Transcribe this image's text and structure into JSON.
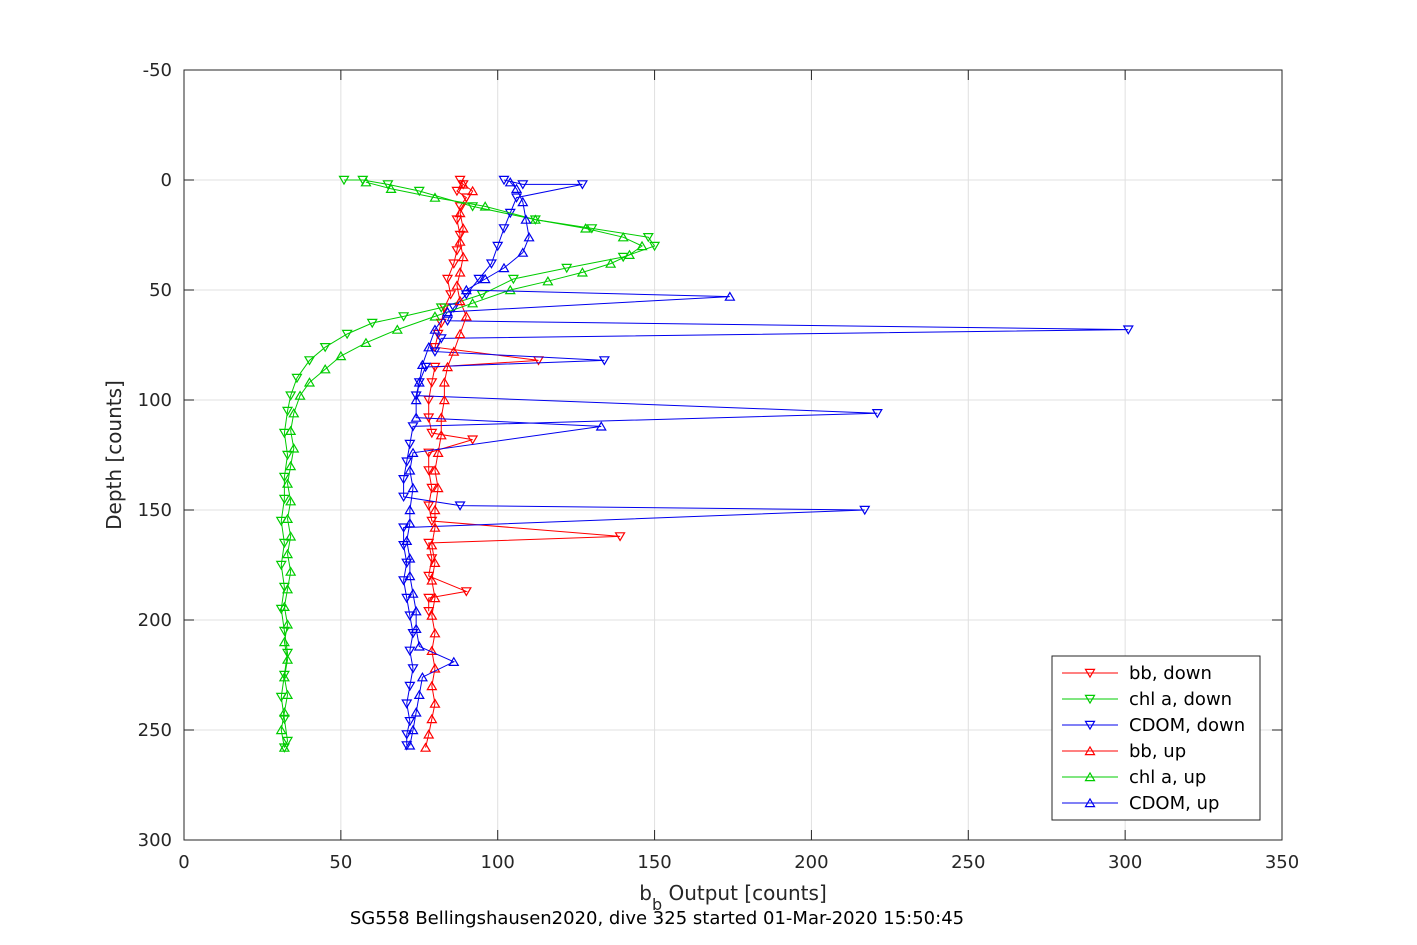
{
  "chart_data": {
    "type": "scatter",
    "xlabel_main": "b",
    "xlabel_sub": "b",
    "xlabel_rest": " Output [counts]",
    "ylabel": "Depth [counts]",
    "caption": "SG558 Bellingshausen2020, dive 325 started 01-Mar-2020 15:50:45",
    "xlim": [
      0,
      350
    ],
    "ylim": [
      -50,
      300
    ],
    "y_reversed": true,
    "grid": true,
    "legend_position": "bottom-right",
    "xticks": [
      "0",
      "50",
      "100",
      "150",
      "200",
      "250",
      "300",
      "350"
    ],
    "yticks": [
      "-50",
      "0",
      "50",
      "100",
      "150",
      "200",
      "250",
      "300"
    ],
    "colors": {
      "red": "#ff0000",
      "green": "#00cc00",
      "blue": "#0000ee",
      "grid": "#e0e0e0",
      "axis": "#262626"
    },
    "series": [
      {
        "name": "bb, down",
        "color": "#ff0000",
        "marker": "down",
        "points": [
          [
            88,
            0
          ],
          [
            89,
            2
          ],
          [
            87,
            5
          ],
          [
            90,
            8
          ],
          [
            88,
            12
          ],
          [
            87,
            18
          ],
          [
            88,
            25
          ],
          [
            87,
            32
          ],
          [
            86,
            38
          ],
          [
            84,
            45
          ],
          [
            85,
            52
          ],
          [
            83,
            58
          ],
          [
            82,
            65
          ],
          [
            81,
            70
          ],
          [
            80,
            76
          ],
          [
            113,
            82
          ],
          [
            80,
            85
          ],
          [
            79,
            92
          ],
          [
            78,
            100
          ],
          [
            78,
            108
          ],
          [
            79,
            115
          ],
          [
            92,
            118
          ],
          [
            78,
            124
          ],
          [
            78,
            132
          ],
          [
            79,
            140
          ],
          [
            78,
            148
          ],
          [
            79,
            155
          ],
          [
            139,
            162
          ],
          [
            78,
            165
          ],
          [
            79,
            172
          ],
          [
            78,
            180
          ],
          [
            90,
            187
          ],
          [
            78,
            190
          ],
          [
            78,
            196
          ]
        ]
      },
      {
        "name": "chl a, down",
        "color": "#00cc00",
        "marker": "down",
        "points": [
          [
            51,
            0
          ],
          [
            57,
            0
          ],
          [
            65,
            2
          ],
          [
            75,
            5
          ],
          [
            92,
            12
          ],
          [
            112,
            18
          ],
          [
            130,
            22
          ],
          [
            148,
            26
          ],
          [
            150,
            30
          ],
          [
            140,
            35
          ],
          [
            122,
            40
          ],
          [
            105,
            45
          ],
          [
            95,
            52
          ],
          [
            82,
            58
          ],
          [
            70,
            62
          ],
          [
            60,
            65
          ],
          [
            52,
            70
          ],
          [
            45,
            76
          ],
          [
            40,
            82
          ],
          [
            36,
            90
          ],
          [
            34,
            98
          ],
          [
            33,
            105
          ],
          [
            32,
            115
          ],
          [
            33,
            125
          ],
          [
            32,
            135
          ],
          [
            32,
            145
          ],
          [
            31,
            155
          ],
          [
            32,
            165
          ],
          [
            31,
            175
          ],
          [
            32,
            185
          ],
          [
            31,
            195
          ],
          [
            32,
            205
          ],
          [
            33,
            215
          ],
          [
            32,
            225
          ],
          [
            31,
            235
          ],
          [
            32,
            245
          ],
          [
            33,
            255
          ],
          [
            32,
            258
          ]
        ]
      },
      {
        "name": "CDOM, down",
        "color": "#0000ee",
        "marker": "down",
        "points": [
          [
            102,
            0
          ],
          [
            108,
            2
          ],
          [
            127,
            2
          ],
          [
            106,
            8
          ],
          [
            104,
            15
          ],
          [
            102,
            22
          ],
          [
            100,
            30
          ],
          [
            98,
            38
          ],
          [
            94,
            45
          ],
          [
            90,
            52
          ],
          [
            86,
            58
          ],
          [
            84,
            64
          ],
          [
            301,
            68
          ],
          [
            82,
            72
          ],
          [
            80,
            78
          ],
          [
            134,
            82
          ],
          [
            77,
            85
          ],
          [
            75,
            92
          ],
          [
            74,
            98
          ],
          [
            221,
            106
          ],
          [
            73,
            112
          ],
          [
            72,
            120
          ],
          [
            71,
            128
          ],
          [
            70,
            136
          ],
          [
            70,
            144
          ],
          [
            88,
            148
          ],
          [
            217,
            150
          ],
          [
            70,
            158
          ],
          [
            70,
            166
          ],
          [
            71,
            174
          ],
          [
            70,
            182
          ],
          [
            71,
            190
          ],
          [
            72,
            198
          ],
          [
            73,
            206
          ],
          [
            72,
            214
          ],
          [
            73,
            222
          ],
          [
            72,
            230
          ],
          [
            71,
            238
          ],
          [
            72,
            246
          ],
          [
            71,
            252
          ],
          [
            71,
            257
          ]
        ]
      },
      {
        "name": "bb, up",
        "color": "#ff0000",
        "marker": "up",
        "points": [
          [
            77,
            258
          ],
          [
            78,
            252
          ],
          [
            79,
            245
          ],
          [
            80,
            238
          ],
          [
            79,
            230
          ],
          [
            80,
            222
          ],
          [
            79,
            214
          ],
          [
            80,
            206
          ],
          [
            79,
            198
          ],
          [
            80,
            190
          ],
          [
            79,
            182
          ],
          [
            80,
            174
          ],
          [
            79,
            166
          ],
          [
            80,
            158
          ],
          [
            80,
            150
          ],
          [
            81,
            140
          ],
          [
            80,
            132
          ],
          [
            81,
            124
          ],
          [
            82,
            116
          ],
          [
            82,
            108
          ],
          [
            83,
            100
          ],
          [
            83,
            92
          ],
          [
            84,
            85
          ],
          [
            86,
            78
          ],
          [
            88,
            70
          ],
          [
            90,
            62
          ],
          [
            88,
            55
          ],
          [
            87,
            48
          ],
          [
            88,
            42
          ],
          [
            89,
            35
          ],
          [
            88,
            28
          ],
          [
            89,
            22
          ],
          [
            88,
            15
          ],
          [
            92,
            5
          ],
          [
            89,
            2
          ]
        ]
      },
      {
        "name": "chl a, up",
        "color": "#00cc00",
        "marker": "up",
        "points": [
          [
            32,
            258
          ],
          [
            31,
            250
          ],
          [
            32,
            242
          ],
          [
            33,
            234
          ],
          [
            32,
            226
          ],
          [
            33,
            218
          ],
          [
            32,
            210
          ],
          [
            33,
            202
          ],
          [
            32,
            194
          ],
          [
            33,
            186
          ],
          [
            34,
            178
          ],
          [
            33,
            170
          ],
          [
            34,
            162
          ],
          [
            33,
            154
          ],
          [
            34,
            146
          ],
          [
            33,
            138
          ],
          [
            34,
            130
          ],
          [
            35,
            122
          ],
          [
            34,
            114
          ],
          [
            35,
            106
          ],
          [
            37,
            98
          ],
          [
            40,
            92
          ],
          [
            45,
            86
          ],
          [
            50,
            80
          ],
          [
            58,
            74
          ],
          [
            68,
            68
          ],
          [
            80,
            62
          ],
          [
            92,
            56
          ],
          [
            104,
            50
          ],
          [
            116,
            46
          ],
          [
            127,
            42
          ],
          [
            136,
            38
          ],
          [
            142,
            34
          ],
          [
            146,
            30
          ],
          [
            140,
            26
          ],
          [
            128,
            22
          ],
          [
            112,
            18
          ],
          [
            96,
            12
          ],
          [
            80,
            8
          ],
          [
            66,
            4
          ],
          [
            58,
            1
          ]
        ]
      },
      {
        "name": "CDOM, up",
        "color": "#0000ee",
        "marker": "up",
        "points": [
          [
            72,
            257
          ],
          [
            73,
            250
          ],
          [
            74,
            242
          ],
          [
            75,
            234
          ],
          [
            76,
            226
          ],
          [
            86,
            219
          ],
          [
            75,
            212
          ],
          [
            74,
            204
          ],
          [
            74,
            196
          ],
          [
            73,
            188
          ],
          [
            72,
            180
          ],
          [
            72,
            172
          ],
          [
            71,
            164
          ],
          [
            72,
            156
          ],
          [
            72,
            150
          ],
          [
            73,
            140
          ],
          [
            72,
            132
          ],
          [
            73,
            124
          ],
          [
            133,
            112
          ],
          [
            74,
            108
          ],
          [
            74,
            100
          ],
          [
            75,
            92
          ],
          [
            76,
            84
          ],
          [
            78,
            76
          ],
          [
            80,
            68
          ],
          [
            84,
            60
          ],
          [
            174,
            53
          ],
          [
            90,
            50
          ],
          [
            96,
            45
          ],
          [
            102,
            40
          ],
          [
            108,
            33
          ],
          [
            110,
            26
          ],
          [
            109,
            18
          ],
          [
            108,
            10
          ],
          [
            106,
            4
          ],
          [
            104,
            1
          ]
        ]
      }
    ]
  }
}
